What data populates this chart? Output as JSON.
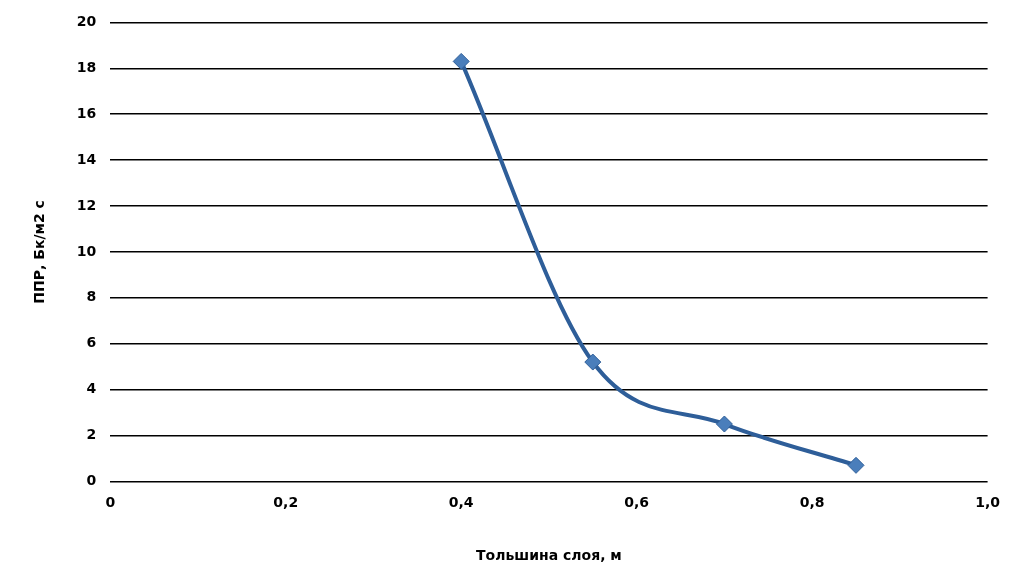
{
  "chart_data": {
    "type": "line",
    "xlabel": "Тольшина слоя, м",
    "ylabel": "ППР, Бк/м2 с",
    "x": [
      0.4,
      0.55,
      0.7,
      0.85
    ],
    "series": [
      {
        "color": "#2e5e99",
        "values": [
          18.3,
          5.2,
          2.5,
          0.7
        ]
      }
    ],
    "xlim": [
      0,
      1
    ],
    "xticks": [
      0,
      {
        "value": 0.2,
        "label": "0,2"
      },
      {
        "value": 0.4,
        "label": "0,4"
      },
      {
        "value": 0.6,
        "label": "0,6"
      },
      {
        "value": 0.8,
        "label": "0,8"
      },
      {
        "value": 1,
        "label": "1,0"
      }
    ],
    "ylim": [
      0,
      20
    ],
    "yticks": [
      0,
      2,
      4,
      6,
      8,
      10,
      12,
      14,
      16,
      18,
      20
    ],
    "grid": "y",
    "legend": false,
    "marker": "diamond",
    "line_style": "solid"
  }
}
